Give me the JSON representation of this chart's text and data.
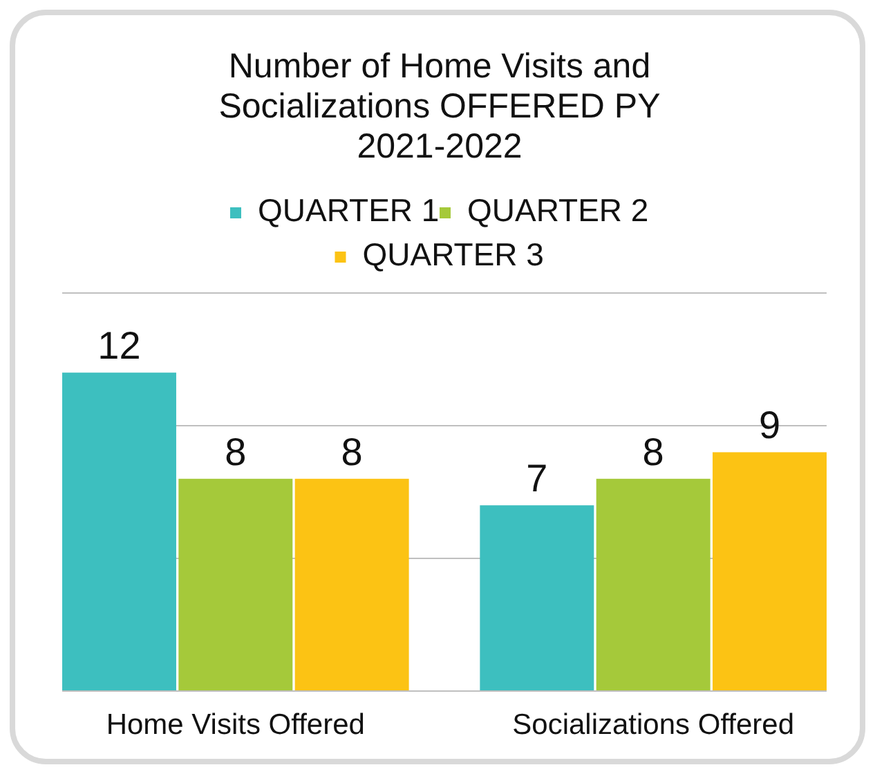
{
  "chart_data": {
    "type": "bar",
    "title": "Number of Home Visits and Socializations OFFERED PY 2021-2022",
    "categories": [
      "Home Visits Offered",
      "Socializations Offered"
    ],
    "series": [
      {
        "name": "QUARTER 1",
        "color": "#3dbfbf",
        "values": [
          12,
          7
        ]
      },
      {
        "name": "QUARTER 2",
        "color": "#a5c93a",
        "values": [
          8,
          8
        ]
      },
      {
        "name": "QUARTER 3",
        "color": "#fcc314",
        "values": [
          8,
          9
        ]
      }
    ],
    "ylim": [
      0,
      15
    ],
    "yticks": [
      {
        "value": 0,
        "label": null
      },
      {
        "value": 5,
        "label": null
      },
      {
        "value": 10,
        "label": null
      },
      {
        "value": 15,
        "label": null
      }
    ],
    "tick_labels": "x",
    "grid": "y",
    "legend": "top",
    "data_labels": true
  }
}
